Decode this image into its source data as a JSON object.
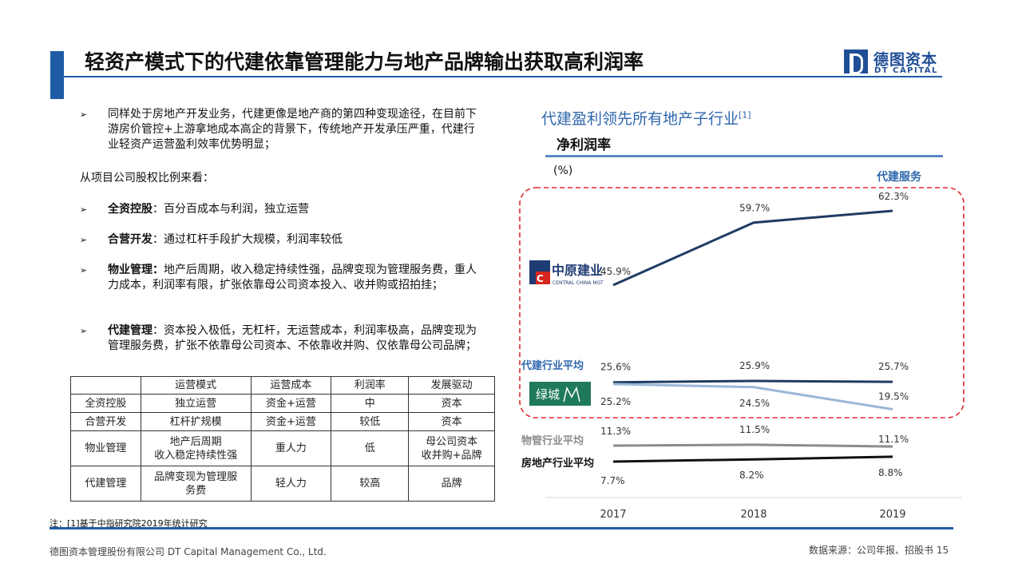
{
  "header": {
    "title": "轻资产模式下的代建依靠管理能力与地产品牌输出获取高利润率"
  },
  "logo": {
    "cn": "德图资本",
    "en": "DT CAPITAL"
  },
  "bullets": {
    "b1": "同样处于房地产开发业务，代建更像是地产商的第四种变现途径，在目前下游房价管控+上游拿地成本高企的背景下，传统地产开发承压严重，代建行业轻资产运营盈利效率优势明显；",
    "intro": "从项目公司股权比例来看：",
    "b2_label": "全资控股",
    "b2_text": "：百分百成本与利润，独立运营",
    "b3_label": "合营开发",
    "b3_text": "：通过杠杆手段扩大规模，利润率较低",
    "b4_label": "物业管理：",
    "b4_text": "地产后周期，收入稳定持续性强，品牌变现为管理服务费，重人力成本，利润率有限，扩张依靠母公司资本投入、收并购或招拍挂；",
    "b5_label": "代建管理",
    "b5_text": "：资本投入极低，无杠杆，无运营成本，利润率极高，品牌变现为管理服务费，扩张不依靠母公司资本、不依靠收并购、仅依靠母公司品牌；"
  },
  "table": {
    "headers": [
      "",
      "运营模式",
      "运营成本",
      "利润率",
      "发展驱动"
    ],
    "rows": [
      [
        "全资控股",
        "独立运营",
        "资金+运营",
        "中",
        "资本"
      ],
      [
        "合营开发",
        "杠杆扩规模",
        "资金+运营",
        "较低",
        "资本"
      ],
      [
        "物业管理",
        "地产后周期\n收入稳定持续性强",
        "重人力",
        "低",
        "母公司资本\n收并购+品牌"
      ],
      [
        "代建管理",
        "品牌变现为管理服\n务费",
        "轻人力",
        "较高",
        "品牌"
      ]
    ]
  },
  "chart_heading": "代建盈利领先所有地产子行业",
  "chart_heading_sup": "[1]",
  "chart_data": {
    "type": "line",
    "title": "净利润率",
    "ylabel": "(%)",
    "categories": [
      "2017",
      "2018",
      "2019"
    ],
    "series": [
      {
        "name": "代建服务",
        "values": [
          45.9,
          59.7,
          62.3
        ],
        "color": "#1f3b63"
      },
      {
        "name": "代建行业平均",
        "values": [
          25.6,
          25.9,
          25.7
        ],
        "color": "#1f3b63"
      },
      {
        "name": "",
        "values": [
          25.2,
          24.5,
          19.5
        ],
        "color": "#9ab7d8"
      },
      {
        "name": "物管行业平均",
        "values": [
          11.3,
          11.5,
          11.1
        ],
        "color": "#8c8c8c"
      },
      {
        "name": "房地产行业平均",
        "values": [
          7.7,
          8.2,
          8.8
        ],
        "color": "#111111"
      }
    ],
    "value_labels": {
      "s0": [
        "45.9%",
        "59.7%",
        "62.3%"
      ],
      "s1": [
        "25.6%",
        "25.9%",
        "25.7%"
      ],
      "s2": [
        "25.2%",
        "24.5%",
        "19.5%"
      ],
      "s3": [
        "11.3%",
        "11.5%",
        "11.1%"
      ],
      "s4": [
        "7.7%",
        "8.2%",
        "8.8%"
      ]
    },
    "company_logos": {
      "zhongyuan_cn": "中原建业",
      "zhongyuan_en": "CENTRAL CHINA MGT",
      "lvcheng": "绿城"
    }
  },
  "colors": {
    "accent": "#1f5ca8",
    "highlight_box": "#e0262b"
  },
  "note": "注：[1]基于中指研究院2019年统计研究",
  "footer": {
    "left": "德图资本管理股份有限公司 DT Capital Management Co., Ltd.",
    "right": "数据来源：公司年报、招股书 15"
  }
}
